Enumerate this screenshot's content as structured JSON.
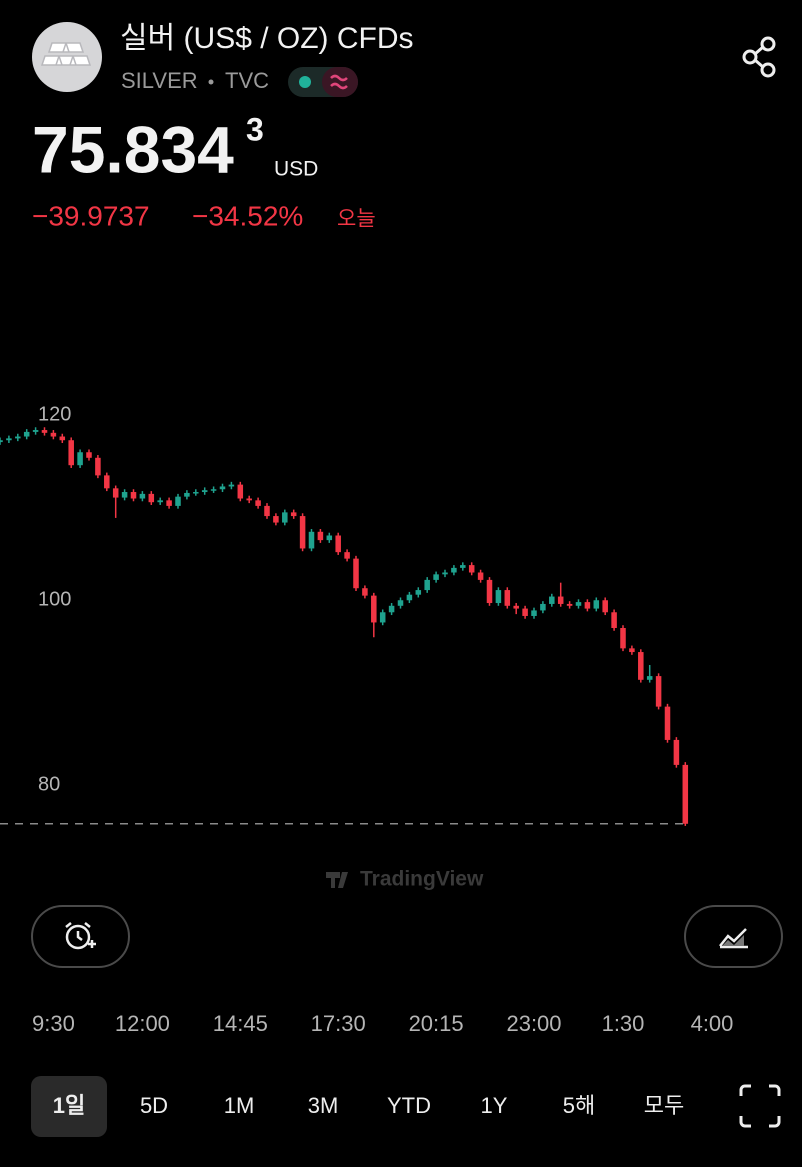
{
  "header": {
    "title": "실버 (US$ / OZ) CFDs",
    "symbol": "SILVER",
    "exchange": "TVC",
    "price": "75.834",
    "price_superscript": "3",
    "currency": "USD",
    "change": "−39.9737",
    "change_percent": "−34.52%",
    "period": "오늘"
  },
  "chart_data": {
    "type": "candlestick",
    "x": [
      8,
      8.25,
      8.5,
      8.75,
      9,
      9.25,
      9.5,
      9.75,
      10,
      10.25,
      10.5,
      10.75,
      11,
      11.25,
      11.5,
      11.75,
      12,
      12.25,
      12.5,
      12.75,
      13,
      13.25,
      13.5,
      13.75,
      14,
      14.25,
      14.5,
      14.75,
      15,
      15.25,
      15.5,
      15.75,
      16,
      16.25,
      16.5,
      16.75,
      17,
      17.25,
      17.5,
      17.75,
      18,
      18.25,
      18.5,
      18.75,
      19,
      19.25,
      19.5,
      19.75,
      20,
      20.25,
      20.5,
      20.75,
      21,
      21.25,
      21.5,
      21.75,
      22,
      22.25,
      22.5,
      22.75,
      23,
      23.25,
      23.5,
      23.75,
      24,
      24.25,
      24.5,
      24.75,
      25,
      25.25,
      25.5,
      25.75,
      26,
      26.25,
      26.5,
      26.75,
      27,
      27.25
    ],
    "series": [
      {
        "open": [
          117.1,
          117.3,
          117.5,
          117.7,
          118.2,
          118.4,
          118.1,
          117.7,
          117.3,
          114.6,
          116.0,
          115.4,
          113.5,
          112.1,
          111.1,
          111.7,
          111.0,
          111.5,
          110.6,
          110.8,
          110.2,
          111.2,
          111.6,
          111.7,
          111.9,
          112.0,
          112.3,
          112.5,
          111.0,
          110.8,
          110.2,
          109.1,
          108.4,
          109.5,
          109.1,
          105.6,
          107.4,
          106.5,
          107.0,
          105.2,
          104.5,
          101.3,
          100.5,
          97.6,
          98.7,
          99.4,
          100.0,
          100.6,
          101.1,
          102.2,
          102.8,
          103.0,
          103.5,
          103.8,
          103.0,
          102.2,
          99.7,
          101.1,
          99.4,
          99.1,
          98.3,
          98.9,
          99.6,
          100.4,
          99.6,
          99.4,
          99.8,
          99.1,
          100.0,
          98.7,
          97.0,
          94.8,
          94.4,
          91.4,
          91.8,
          88.5,
          84.9,
          82.2
        ],
        "high": [
          117.6,
          117.8,
          118.0,
          118.5,
          118.7,
          118.7,
          118.4,
          118.0,
          117.6,
          116.3,
          116.3,
          115.7,
          113.8,
          112.4,
          112.0,
          112.0,
          111.8,
          111.8,
          111.1,
          111.1,
          111.5,
          111.9,
          112.0,
          112.2,
          112.3,
          112.6,
          112.8,
          112.8,
          111.3,
          111.1,
          110.5,
          109.4,
          109.8,
          109.8,
          109.4,
          107.7,
          107.7,
          107.3,
          107.3,
          105.5,
          104.8,
          101.6,
          100.8,
          99.0,
          99.7,
          100.3,
          100.9,
          101.4,
          102.5,
          103.1,
          103.3,
          103.8,
          104.1,
          104.1,
          103.3,
          102.5,
          101.4,
          101.4,
          99.7,
          99.4,
          99.2,
          99.9,
          100.7,
          101.9,
          99.9,
          100.1,
          100.1,
          100.3,
          100.3,
          99.0,
          97.3,
          95.1,
          94.7,
          93.0,
          92.1,
          88.8,
          85.2,
          82.5
        ],
        "low": [
          116.8,
          117.0,
          117.2,
          117.4,
          117.9,
          117.8,
          117.4,
          117.0,
          114.3,
          114.3,
          115.1,
          113.2,
          111.8,
          108.9,
          110.8,
          110.7,
          110.7,
          110.3,
          110.3,
          109.9,
          109.9,
          110.9,
          111.3,
          111.4,
          111.6,
          111.7,
          112.0,
          110.7,
          110.5,
          109.9,
          108.8,
          108.1,
          108.1,
          108.8,
          105.3,
          105.3,
          106.2,
          106.2,
          104.9,
          104.2,
          101.0,
          100.2,
          96.0,
          97.3,
          98.4,
          99.1,
          99.7,
          100.3,
          100.8,
          101.9,
          102.5,
          102.7,
          103.2,
          102.7,
          101.9,
          99.4,
          99.4,
          99.1,
          98.5,
          98.0,
          98.0,
          98.6,
          99.3,
          99.3,
          99.1,
          99.1,
          98.8,
          98.8,
          98.4,
          96.7,
          94.5,
          94.1,
          91.1,
          91.1,
          88.2,
          84.6,
          81.9,
          75.6
        ],
        "close": [
          117.3,
          117.5,
          117.7,
          118.2,
          118.4,
          118.1,
          117.7,
          117.3,
          114.6,
          116.0,
          115.4,
          113.5,
          112.1,
          111.1,
          111.7,
          111.0,
          111.5,
          110.6,
          110.8,
          110.2,
          111.2,
          111.6,
          111.7,
          111.9,
          112.0,
          112.3,
          112.5,
          111.0,
          110.8,
          110.2,
          109.1,
          108.4,
          109.5,
          109.1,
          105.6,
          107.4,
          106.5,
          107.0,
          105.2,
          104.5,
          101.3,
          100.5,
          97.6,
          98.7,
          99.4,
          100.0,
          100.6,
          101.1,
          102.2,
          102.8,
          103.0,
          103.5,
          103.8,
          103.0,
          102.2,
          99.7,
          101.1,
          99.4,
          99.1,
          98.3,
          98.9,
          99.6,
          100.4,
          99.6,
          99.4,
          99.8,
          99.1,
          100.0,
          98.7,
          97.0,
          94.8,
          94.4,
          91.4,
          91.8,
          88.5,
          84.9,
          82.2,
          75.834
        ]
      }
    ],
    "up_color": "#1fa38f",
    "down_color": "#f23645",
    "xlim": [
      8,
      30.5
    ],
    "xticks": [
      {
        "value": 9.5,
        "label": "9:30"
      },
      {
        "value": 12,
        "label": "12:00"
      },
      {
        "value": 14.75,
        "label": "14:45"
      },
      {
        "value": 17.5,
        "label": "17:30"
      },
      {
        "value": 20.25,
        "label": "20:15"
      },
      {
        "value": 23,
        "label": "23:00"
      },
      {
        "value": 25.5,
        "label": "1:30"
      },
      {
        "value": 28,
        "label": "4:00"
      }
    ],
    "ylim": [
      73,
      129
    ],
    "yticks": [
      80,
      100,
      120
    ],
    "last_price_line": true
  },
  "watermark": "TradingView",
  "timeframes": [
    "1일",
    "5D",
    "1M",
    "3M",
    "YTD",
    "1Y",
    "5해",
    "모두"
  ],
  "selected_timeframe": 0
}
